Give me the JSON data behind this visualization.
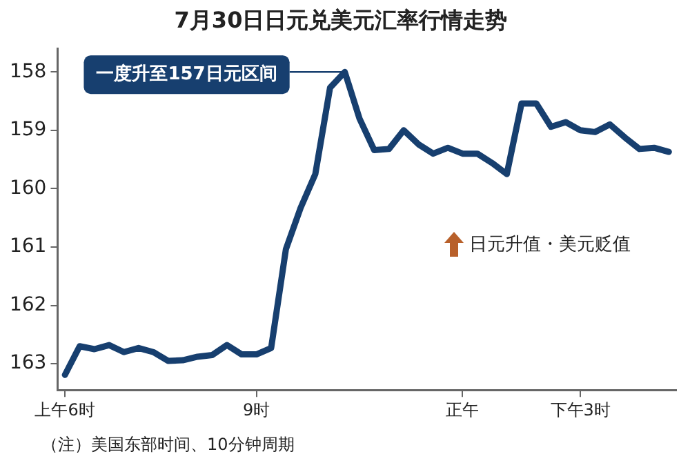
{
  "chart_data": {
    "type": "line",
    "title": "7月30日日元兑美元汇率行情走势",
    "categories": [
      "上午6时",
      null,
      null,
      null,
      null,
      null,
      null,
      null,
      null,
      null,
      null,
      null,
      null,
      "9时",
      null,
      null,
      null,
      null,
      null,
      null,
      null,
      null,
      null,
      null,
      null,
      null,
      null,
      "正午",
      null,
      null,
      null,
      null,
      null,
      null,
      null,
      "下午3时",
      null,
      null,
      null,
      null,
      null,
      null
    ],
    "series": [
      {
        "color": "#173f6f",
        "values": [
          163.19,
          162.7,
          162.75,
          162.68,
          162.8,
          162.73,
          162.8,
          162.95,
          162.94,
          162.88,
          162.85,
          162.68,
          162.84,
          162.84,
          162.73,
          161.04,
          160.33,
          159.75,
          158.27,
          158.0,
          158.8,
          159.34,
          159.32,
          159.0,
          159.24,
          159.4,
          159.3,
          159.4,
          159.4,
          159.56,
          159.75,
          158.54,
          158.54,
          158.94,
          158.86,
          159.0,
          159.03,
          158.9,
          159.12,
          159.32,
          159.3,
          159.37
        ]
      }
    ],
    "ylim": [
      163.45,
      157.6
    ],
    "yticks": [
      158,
      159,
      160,
      161,
      162,
      163
    ],
    "grid": false,
    "legend": false,
    "marker": "none",
    "line_style": "solid",
    "annotations": [
      "一度升至157日元区间",
      "日元升值・美元贬值",
      "（注）美国东部时间、10分钟周期"
    ]
  }
}
